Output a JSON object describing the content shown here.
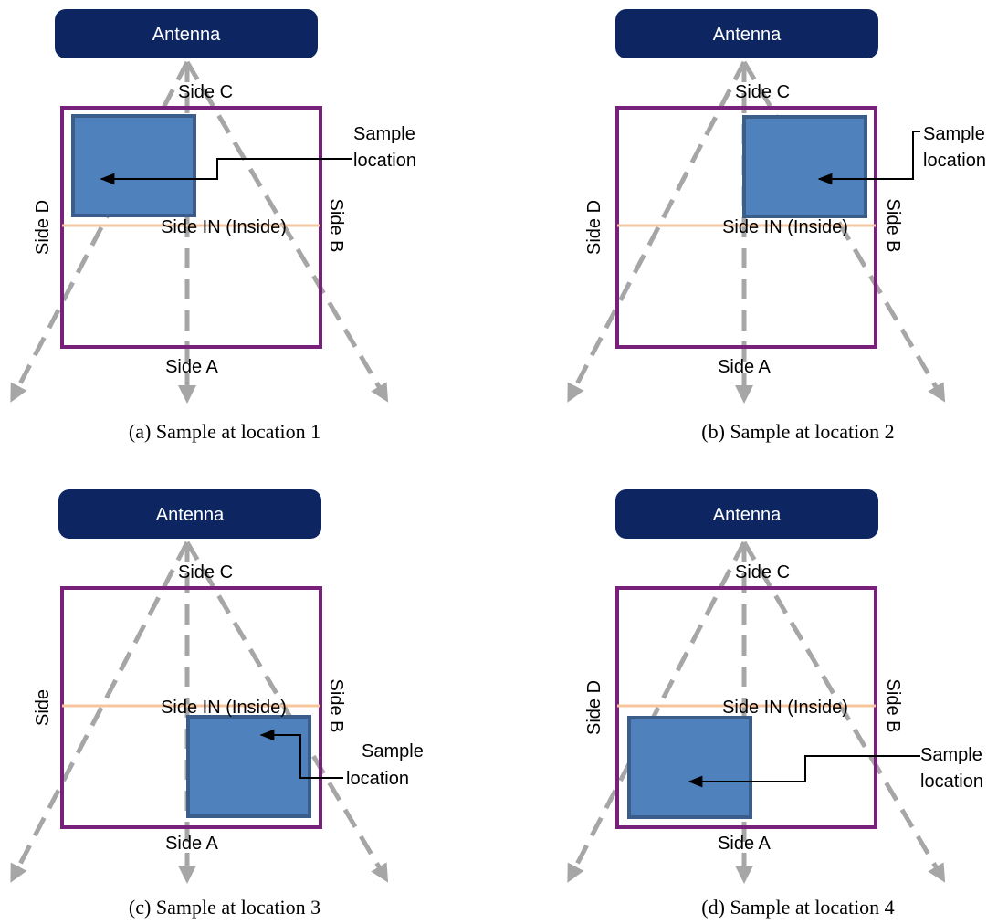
{
  "colors": {
    "antenna_fill": "#0d2560",
    "room_stroke": "#77217a",
    "sample_fill": "#4f81bd",
    "sample_stroke": "#3a5d8a",
    "inside_line": "#f7c59c",
    "beam_dashed": "#a6a6a6",
    "pointer": "#000000"
  },
  "panels": [
    {
      "id": "a",
      "antenna_label": "Antenna",
      "side_top": "Side C",
      "side_bottom": "Side A",
      "side_left": "Side D",
      "side_right": "Side B",
      "side_inside": "Side IN (Inside)",
      "sample_label_line1": "Sample",
      "sample_label_line2": "location",
      "caption": "(a) Sample at location 1"
    },
    {
      "id": "b",
      "antenna_label": "Antenna",
      "side_top": "Side C",
      "side_bottom": "Side A",
      "side_left": "Side D",
      "side_right": "Side B",
      "side_inside": "Side IN (Inside)",
      "sample_label_line1": "Sample",
      "sample_label_line2": "location",
      "caption": "(b) Sample at location 2"
    },
    {
      "id": "c",
      "antenna_label": "Antenna",
      "side_top": "Side C",
      "side_bottom": "Side A",
      "side_left": "Side",
      "side_right": "Side B",
      "side_inside": "Side IN (Inside)",
      "sample_label_line1": "Sample",
      "sample_label_line2": "location",
      "caption": "(c) Sample at location 3"
    },
    {
      "id": "d",
      "antenna_label": "Antenna",
      "side_top": "Side C",
      "side_bottom": "Side A",
      "side_left": "Side D",
      "side_right": "Side B",
      "side_inside": "Side IN (Inside)",
      "sample_label_line1": "Sample",
      "sample_label_line2": "location",
      "caption": "(d) Sample at location 4"
    }
  ]
}
